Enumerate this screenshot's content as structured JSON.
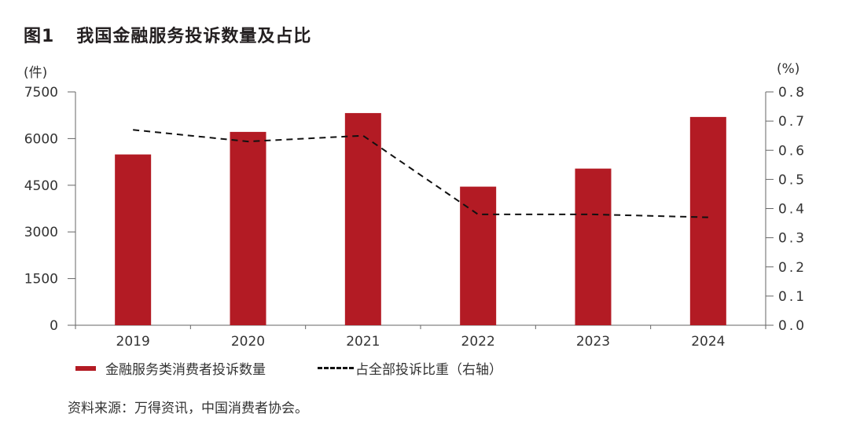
{
  "header": {
    "figure_number": "图1",
    "title": "我国金融服务投诉数量及占比"
  },
  "axes": {
    "left_unit": "(件)",
    "right_unit": "(%)",
    "left_ticks": [
      "0",
      "1500",
      "3000",
      "4500",
      "6000",
      "7500"
    ],
    "right_ticks": [
      "0.0",
      "0.1",
      "0.2",
      "0.3",
      "0.4",
      "0.5",
      "0.6",
      "0.7",
      "0.8"
    ]
  },
  "legend": {
    "bar_label": "金融服务类消费者投诉数量",
    "line_label": "占全部投诉比重（右轴）"
  },
  "footer": {
    "source": "资料来源：万得资讯，中国消费者协会。"
  },
  "colors": {
    "bar": "#b31b24",
    "line": "#111111",
    "axis": "#666666"
  },
  "chart_data": {
    "type": "bar",
    "title": "我国金融服务投诉数量及占比",
    "categories": [
      "2019",
      "2020",
      "2021",
      "2022",
      "2023",
      "2024"
    ],
    "series": [
      {
        "name": "金融服务类消费者投诉数量",
        "type": "bar",
        "axis": "left",
        "values": [
          5490,
          6215,
          6820,
          4455,
          5035,
          6695
        ]
      },
      {
        "name": "占全部投诉比重（右轴）",
        "type": "line",
        "style": "dashed",
        "axis": "right",
        "values": [
          0.67,
          0.63,
          0.65,
          0.38,
          0.38,
          0.37
        ]
      }
    ],
    "xlabel": "",
    "ylabel": "(件)",
    "ylabel_right": "(%)",
    "ylim": [
      0,
      7500
    ],
    "ylim_right": [
      0,
      0.8
    ],
    "yticks": [
      0,
      1500,
      3000,
      4500,
      6000,
      7500
    ],
    "yticks_right": [
      0.0,
      0.1,
      0.2,
      0.3,
      0.4,
      0.5,
      0.6,
      0.7,
      0.8
    ],
    "grid": false,
    "legend_position": "bottom"
  }
}
